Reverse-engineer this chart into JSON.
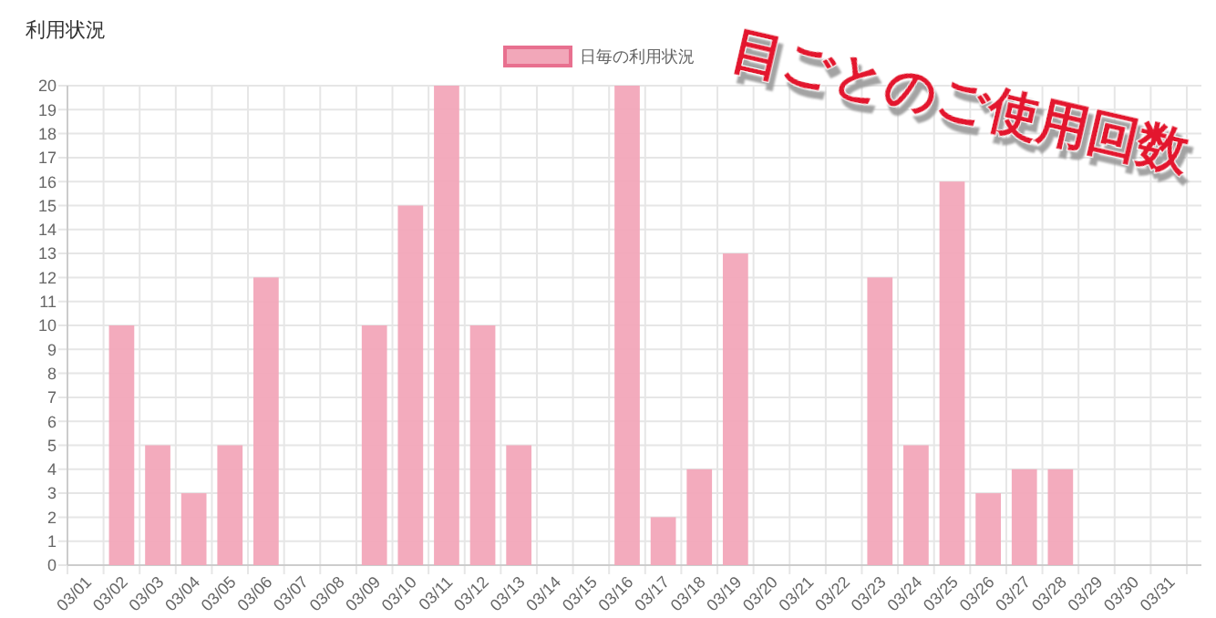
{
  "chart_data": {
    "type": "bar",
    "title": "利用状況",
    "categories": [
      "03/01",
      "03/02",
      "03/03",
      "03/04",
      "03/05",
      "03/06",
      "03/07",
      "03/08",
      "03/09",
      "03/10",
      "03/11",
      "03/12",
      "03/13",
      "03/14",
      "03/15",
      "03/16",
      "03/17",
      "03/18",
      "03/19",
      "03/20",
      "03/21",
      "03/22",
      "03/23",
      "03/24",
      "03/25",
      "03/26",
      "03/27",
      "03/28",
      "03/29",
      "03/30",
      "03/31"
    ],
    "series": [
      {
        "name": "日毎の利用状況",
        "color": "#f2a7b9",
        "values": [
          0,
          10,
          5,
          3,
          5,
          12,
          0,
          0,
          10,
          15,
          20,
          10,
          5,
          0,
          0,
          20,
          2,
          4,
          13,
          0,
          0,
          0,
          12,
          5,
          16,
          3,
          4,
          4,
          0,
          0,
          0
        ]
      }
    ],
    "ylim": [
      0,
      20
    ],
    "yticks": [
      0,
      1,
      2,
      3,
      4,
      5,
      6,
      7,
      8,
      9,
      10,
      11,
      12,
      13,
      14,
      15,
      16,
      17,
      18,
      19,
      20
    ],
    "grid": true,
    "legend": "top",
    "annotations": [
      "目ごとのご使用回数"
    ]
  }
}
